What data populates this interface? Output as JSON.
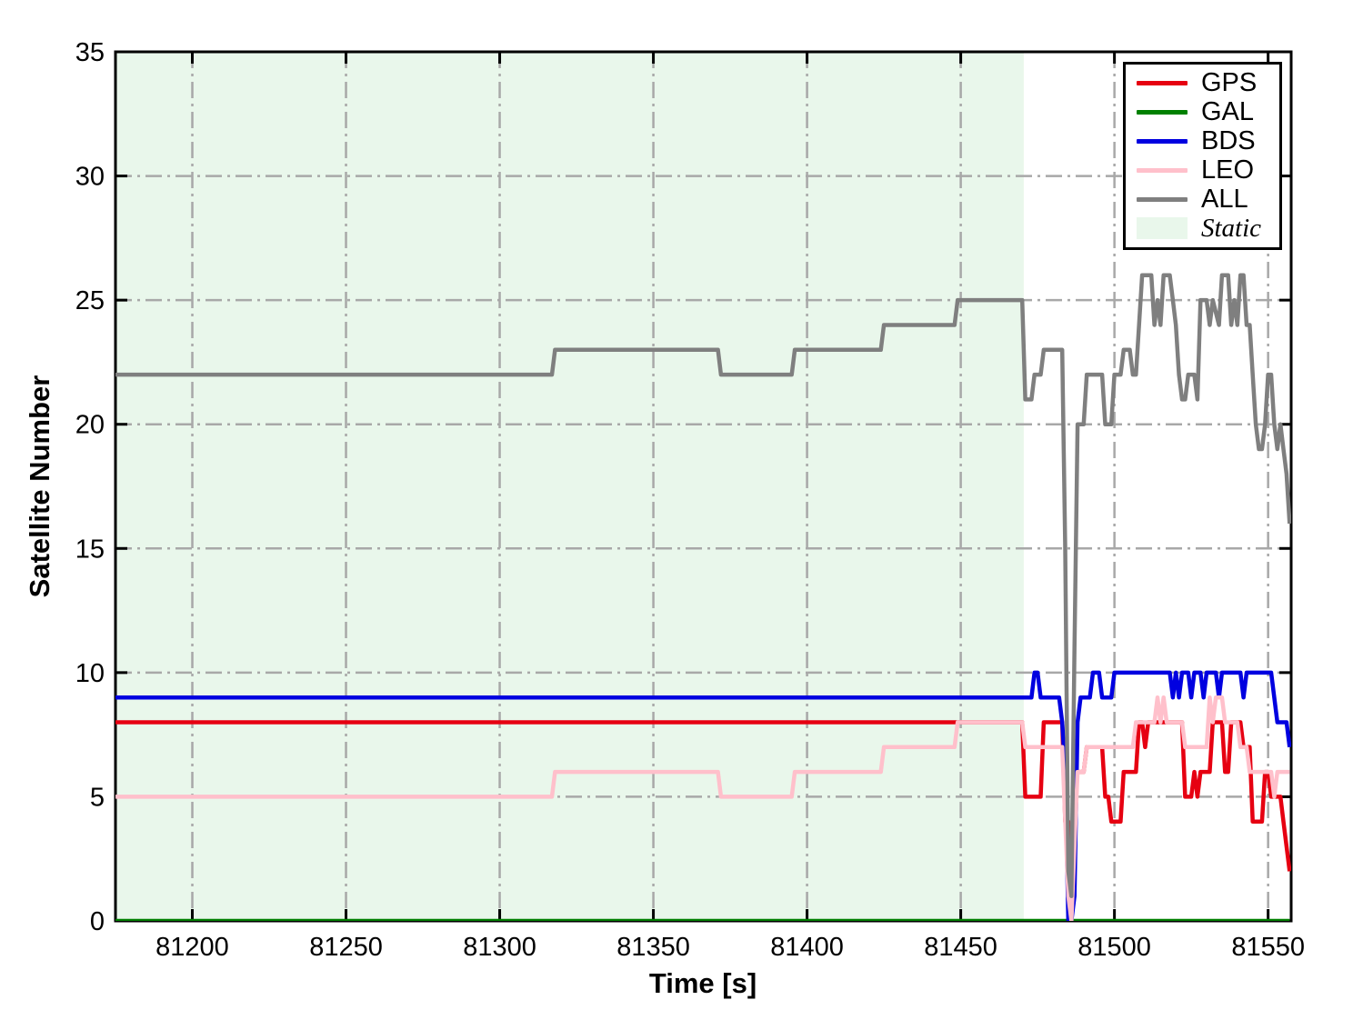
{
  "chart_data": {
    "type": "line",
    "title": "",
    "xlabel": "Time [s]",
    "ylabel": "Satellite Number",
    "xlim": [
      81175,
      81557.5
    ],
    "ylim": [
      0,
      35
    ],
    "xticks": [
      81200,
      81250,
      81300,
      81350,
      81400,
      81450,
      81500,
      81550
    ],
    "yticks": [
      0,
      5,
      10,
      15,
      20,
      25,
      30,
      35
    ],
    "grid": true,
    "grid_style": "dash-dot",
    "grid_color": "#a8a8a8",
    "legend_position": "upper right",
    "static_region": {
      "label": "Static",
      "x_start": 81175,
      "x_end": 81470.5,
      "color": "#e9f7eb"
    },
    "series": [
      {
        "name": "GPS",
        "color": "#e60011",
        "points": [
          [
            81175,
            8
          ],
          [
            81470,
            8
          ],
          [
            81471,
            5
          ],
          [
            81476,
            5
          ],
          [
            81477,
            8
          ],
          [
            81483,
            8
          ],
          [
            81484,
            4
          ],
          [
            81485,
            4
          ],
          [
            81486,
            1
          ],
          [
            81487,
            6
          ],
          [
            81490,
            6
          ],
          [
            81491,
            7
          ],
          [
            81496,
            7
          ],
          [
            81497,
            5
          ],
          [
            81498,
            5
          ],
          [
            81499,
            4
          ],
          [
            81502,
            4
          ],
          [
            81503,
            6
          ],
          [
            81507,
            6
          ],
          [
            81508,
            8
          ],
          [
            81509,
            8
          ],
          [
            81510,
            7
          ],
          [
            81511,
            8
          ],
          [
            81513,
            8
          ],
          [
            81522,
            8
          ],
          [
            81523,
            5
          ],
          [
            81525,
            5
          ],
          [
            81526,
            6
          ],
          [
            81527,
            5
          ],
          [
            81528,
            6
          ],
          [
            81531,
            6
          ],
          [
            81532,
            8
          ],
          [
            81535,
            8
          ],
          [
            81536,
            6
          ],
          [
            81537,
            6
          ],
          [
            81538,
            8
          ],
          [
            81541,
            8
          ],
          [
            81542,
            7
          ],
          [
            81544,
            7
          ],
          [
            81545,
            4
          ],
          [
            81548,
            4
          ],
          [
            81549,
            6
          ],
          [
            81550,
            6
          ],
          [
            81551,
            5
          ],
          [
            81554,
            5
          ],
          [
            81555,
            4
          ],
          [
            81556,
            3
          ],
          [
            81557,
            2
          ]
        ]
      },
      {
        "name": "GAL",
        "color": "#008000",
        "points": [
          [
            81175,
            0
          ],
          [
            81557,
            0
          ]
        ]
      },
      {
        "name": "BDS",
        "color": "#0000e0",
        "points": [
          [
            81175,
            9
          ],
          [
            81473,
            9
          ],
          [
            81474,
            10
          ],
          [
            81475,
            10
          ],
          [
            81476,
            9
          ],
          [
            81482,
            9
          ],
          [
            81483,
            8
          ],
          [
            81484,
            6
          ],
          [
            81485,
            0
          ],
          [
            81486,
            0
          ],
          [
            81487,
            1
          ],
          [
            81488,
            8
          ],
          [
            81489,
            9
          ],
          [
            81492,
            9
          ],
          [
            81493,
            10
          ],
          [
            81495,
            10
          ],
          [
            81496,
            9
          ],
          [
            81499,
            9
          ],
          [
            81500,
            10
          ],
          [
            81518,
            10
          ],
          [
            81519,
            9
          ],
          [
            81520,
            10
          ],
          [
            81521,
            9
          ],
          [
            81522,
            10
          ],
          [
            81524,
            10
          ],
          [
            81525,
            9
          ],
          [
            81526,
            10
          ],
          [
            81528,
            10
          ],
          [
            81529,
            9
          ],
          [
            81530,
            10
          ],
          [
            81533,
            10
          ],
          [
            81534,
            9
          ],
          [
            81535,
            10
          ],
          [
            81541,
            10
          ],
          [
            81542,
            9
          ],
          [
            81543,
            10
          ],
          [
            81551,
            10
          ],
          [
            81552,
            9
          ],
          [
            81553,
            8
          ],
          [
            81556,
            8
          ],
          [
            81557,
            7
          ]
        ]
      },
      {
        "name": "LEO",
        "color": "#ffc0cb",
        "points": [
          [
            81175,
            5
          ],
          [
            81317,
            5
          ],
          [
            81318,
            6
          ],
          [
            81371,
            6
          ],
          [
            81372,
            5
          ],
          [
            81395,
            5
          ],
          [
            81396,
            6
          ],
          [
            81424,
            6
          ],
          [
            81425,
            7
          ],
          [
            81448,
            7
          ],
          [
            81449,
            8
          ],
          [
            81470,
            8
          ],
          [
            81471,
            7
          ],
          [
            81483,
            7
          ],
          [
            81484,
            4
          ],
          [
            81485,
            1
          ],
          [
            81486,
            0
          ],
          [
            81487,
            3
          ],
          [
            81488,
            6
          ],
          [
            81490,
            6
          ],
          [
            81491,
            7
          ],
          [
            81506,
            7
          ],
          [
            81507,
            8
          ],
          [
            81513,
            8
          ],
          [
            81514,
            9
          ],
          [
            81515,
            8
          ],
          [
            81516,
            9
          ],
          [
            81517,
            8
          ],
          [
            81522,
            8
          ],
          [
            81523,
            7
          ],
          [
            81530,
            7
          ],
          [
            81531,
            9
          ],
          [
            81532,
            8
          ],
          [
            81533,
            9
          ],
          [
            81535,
            9
          ],
          [
            81536,
            8
          ],
          [
            81540,
            8
          ],
          [
            81541,
            7
          ],
          [
            81543,
            7
          ],
          [
            81544,
            6
          ],
          [
            81551,
            6
          ],
          [
            81552,
            5
          ],
          [
            81553,
            6
          ],
          [
            81557,
            6
          ]
        ]
      },
      {
        "name": "ALL",
        "color": "#7f7f7f",
        "points": [
          [
            81175,
            22
          ],
          [
            81317,
            22
          ],
          [
            81318,
            23
          ],
          [
            81371,
            23
          ],
          [
            81372,
            22
          ],
          [
            81395,
            22
          ],
          [
            81396,
            23
          ],
          [
            81424,
            23
          ],
          [
            81425,
            24
          ],
          [
            81448,
            24
          ],
          [
            81449,
            25
          ],
          [
            81470,
            25
          ],
          [
            81471,
            21
          ],
          [
            81473,
            21
          ],
          [
            81474,
            22
          ],
          [
            81476,
            22
          ],
          [
            81477,
            23
          ],
          [
            81483,
            23
          ],
          [
            81484,
            15
          ],
          [
            81485,
            2
          ],
          [
            81486,
            1
          ],
          [
            81487,
            11
          ],
          [
            81488,
            20
          ],
          [
            81490,
            20
          ],
          [
            81491,
            22
          ],
          [
            81496,
            22
          ],
          [
            81497,
            20
          ],
          [
            81499,
            20
          ],
          [
            81500,
            22
          ],
          [
            81502,
            22
          ],
          [
            81503,
            23
          ],
          [
            81505,
            23
          ],
          [
            81506,
            22
          ],
          [
            81507,
            22
          ],
          [
            81508,
            24
          ],
          [
            81509,
            26
          ],
          [
            81512,
            26
          ],
          [
            81513,
            24
          ],
          [
            81514,
            25
          ],
          [
            81515,
            24
          ],
          [
            81516,
            26
          ],
          [
            81518,
            26
          ],
          [
            81519,
            25
          ],
          [
            81520,
            24
          ],
          [
            81521,
            22
          ],
          [
            81522,
            21
          ],
          [
            81523,
            21
          ],
          [
            81524,
            22
          ],
          [
            81526,
            22
          ],
          [
            81527,
            21
          ],
          [
            81528,
            25
          ],
          [
            81530,
            25
          ],
          [
            81531,
            24
          ],
          [
            81532,
            25
          ],
          [
            81534,
            24
          ],
          [
            81535,
            26
          ],
          [
            81537,
            26
          ],
          [
            81538,
            24
          ],
          [
            81539,
            25
          ],
          [
            81540,
            24
          ],
          [
            81541,
            26
          ],
          [
            81542,
            26
          ],
          [
            81543,
            24
          ],
          [
            81544,
            24
          ],
          [
            81545,
            22
          ],
          [
            81546,
            20
          ],
          [
            81547,
            19
          ],
          [
            81548,
            19
          ],
          [
            81549,
            20
          ],
          [
            81550,
            22
          ],
          [
            81551,
            22
          ],
          [
            81552,
            20
          ],
          [
            81553,
            19
          ],
          [
            81554,
            20
          ],
          [
            81555,
            19
          ],
          [
            81556,
            18
          ],
          [
            81557,
            16
          ]
        ]
      }
    ]
  },
  "legend": {
    "items": [
      {
        "label": "GPS",
        "swatch": "line",
        "color": "#e60011"
      },
      {
        "label": "GAL",
        "swatch": "line",
        "color": "#008000"
      },
      {
        "label": "BDS",
        "swatch": "line",
        "color": "#0000e0"
      },
      {
        "label": "LEO",
        "swatch": "line",
        "color": "#ffc0cb"
      },
      {
        "label": "ALL",
        "swatch": "line",
        "color": "#7f7f7f"
      },
      {
        "label": "Static",
        "swatch": "patch",
        "color": "#e9f7eb"
      }
    ]
  }
}
